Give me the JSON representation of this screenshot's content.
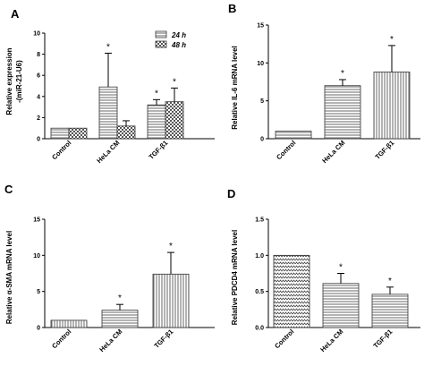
{
  "figure": {
    "panels": [
      {
        "letter": "A",
        "ylabel_lines": [
          "Relative expression",
          "-(miR-21-U6)"
        ]
      },
      {
        "letter": "B",
        "ylabel": "Relative IL-6 mRNA level"
      },
      {
        "letter": "C",
        "ylabel": "Relative α-SMA mRNA level"
      },
      {
        "letter": "D",
        "ylabel": "Relative PDCD4 mRNA level"
      }
    ],
    "legend": [
      "24 h",
      "48 h"
    ],
    "significance_marker": "*"
  },
  "colors": {
    "axis": "#000000",
    "bar_stroke": "#333333",
    "fill": "#ffffff"
  },
  "chart_data": [
    {
      "type": "bar",
      "panel": "A",
      "categories": [
        "Control",
        "HeLa CM",
        "TGF-β1"
      ],
      "series": [
        {
          "name": "24 h",
          "values": [
            1.0,
            4.9,
            3.2
          ],
          "errors": [
            0,
            3.2,
            0.5
          ],
          "significant": [
            false,
            true,
            true
          ]
        },
        {
          "name": "48 h",
          "values": [
            1.0,
            1.2,
            3.5
          ],
          "errors": [
            0,
            0.5,
            1.3
          ],
          "significant": [
            false,
            false,
            true
          ]
        }
      ],
      "ylabel": "Relative expression -(miR-21-U6)",
      "ylim": [
        0,
        10
      ],
      "yticks": [
        0,
        2,
        4,
        6,
        8,
        10
      ],
      "legend": "top-right"
    },
    {
      "type": "bar",
      "panel": "B",
      "categories": [
        "Control",
        "HeLa CM",
        "TGF-β1"
      ],
      "series": [
        {
          "values": [
            1.0,
            7.0,
            8.8
          ],
          "errors": [
            0,
            0.8,
            3.5
          ],
          "significant": [
            false,
            true,
            true
          ]
        }
      ],
      "ylabel": "Relative IL-6 mRNA level",
      "ylim": [
        0,
        15
      ],
      "yticks": [
        0,
        5,
        10,
        15
      ]
    },
    {
      "type": "bar",
      "panel": "C",
      "categories": [
        "Control",
        "HeLa CM",
        "TGF-β1"
      ],
      "series": [
        {
          "values": [
            1.0,
            2.4,
            7.4
          ],
          "errors": [
            0,
            0.8,
            3.0
          ],
          "significant": [
            false,
            true,
            true
          ]
        }
      ],
      "ylabel": "Relative α-SMA mRNA level",
      "ylim": [
        0,
        15
      ],
      "yticks": [
        0,
        5,
        10,
        15
      ]
    },
    {
      "type": "bar",
      "panel": "D",
      "categories": [
        "Control",
        "HeLa CM",
        "TGF-β1"
      ],
      "series": [
        {
          "values": [
            1.0,
            0.61,
            0.46
          ],
          "errors": [
            0,
            0.14,
            0.1
          ],
          "significant": [
            false,
            true,
            true
          ]
        }
      ],
      "ylabel": "Relative PDCD4 mRNA level",
      "ylim": [
        0,
        1.5
      ],
      "yticks": [
        0.0,
        0.5,
        1.0,
        1.5
      ],
      "ytick_labels": [
        "0.0",
        "0.5",
        "1.0",
        "1.5"
      ]
    }
  ]
}
